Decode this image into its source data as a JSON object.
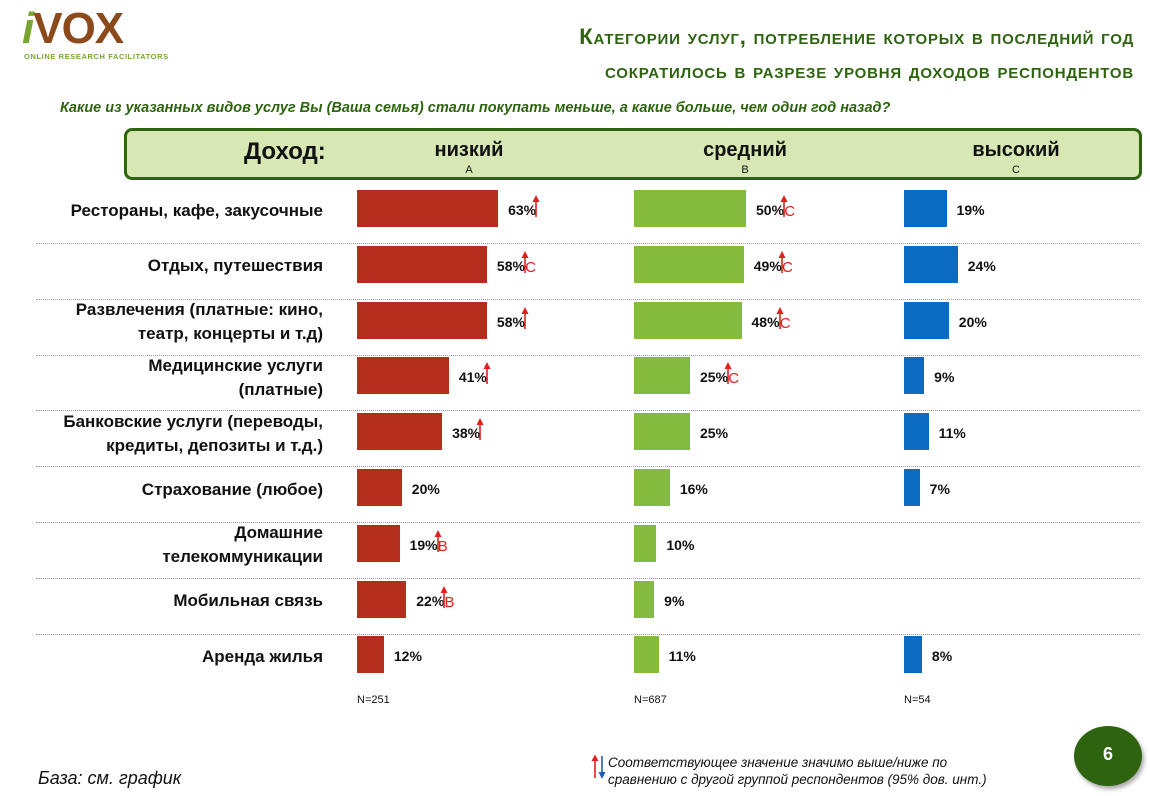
{
  "logo": {
    "main": "VOX",
    "i": "i",
    "tagline": "ONLINE RESEARCH FACILITATORS"
  },
  "title_line1": "Категории услуг, потребление которых в последний год",
  "title_line2": "сократилось в разрезе уровня доходов респондентов",
  "question": "Какие из указанных видов услуг Вы (Ваша семья) стали покупать меньше, а какие больше, чем один год назад?",
  "header": {
    "label": "Доход:"
  },
  "base_text": "База: см. график",
  "legend_line1": "Соответствующее значение значимо выше/ниже по",
  "legend_line2": "сравнению с другой группой респондентов (95% дов. инт.)",
  "page_number": "6",
  "colors": {
    "low": "#b52d1c",
    "mid": "#84ba3e",
    "high": "#0b6ac2",
    "accent": "#2e6410",
    "sig": "#e0201a"
  },
  "chart_data": {
    "type": "bar",
    "orientation": "horizontal",
    "categories": [
      [
        "Рестораны, кафе, закусочные"
      ],
      [
        "Отдых, путешествия"
      ],
      [
        "Развлечения (платные: кино,",
        "театр, концерты и т.д)"
      ],
      [
        "Медицинские услуги",
        "(платные)"
      ],
      [
        "Банковские услуги (переводы,",
        "кредиты, депозиты и т.д.)"
      ],
      [
        "Страхование (любое)"
      ],
      [
        "Домашние",
        "телекоммуникации"
      ],
      [
        "Мобильная связь"
      ],
      [
        "Аренда жилья"
      ]
    ],
    "series": [
      {
        "name": "низкий",
        "letter": "A",
        "n": "N=251",
        "values": [
          63,
          58,
          58,
          41,
          38,
          20,
          19,
          22,
          12
        ],
        "labels": [
          "63%",
          "58%",
          "58%",
          "41%",
          "38%",
          "20%",
          "19%",
          "22%",
          "12%"
        ],
        "sig": [
          {
            "arrow": "up",
            "letter": ""
          },
          {
            "arrow": "up",
            "letter": "C"
          },
          {
            "arrow": "up",
            "letter": ""
          },
          {
            "arrow": "up",
            "letter": ""
          },
          {
            "arrow": "up",
            "letter": ""
          },
          null,
          {
            "arrow": "up",
            "letter": "B"
          },
          {
            "arrow": "up",
            "letter": "B"
          },
          null
        ]
      },
      {
        "name": "средний",
        "letter": "B",
        "n": "N=687",
        "values": [
          50,
          49,
          48,
          25,
          25,
          16,
          10,
          9,
          11
        ],
        "labels": [
          "50%",
          "49%",
          "48%",
          "25%",
          "25%",
          "16%",
          "10%",
          "9%",
          "11%"
        ],
        "sig": [
          {
            "arrow": "up",
            "letter": "C"
          },
          {
            "arrow": "up",
            "letter": "C"
          },
          {
            "arrow": "up",
            "letter": "C"
          },
          {
            "arrow": "up",
            "letter": "C"
          },
          null,
          null,
          null,
          null,
          null
        ]
      },
      {
        "name": "высокий",
        "letter": "C",
        "n": "N=54",
        "values": [
          19,
          24,
          20,
          9,
          11,
          7,
          null,
          null,
          8
        ],
        "labels": [
          "19%",
          "24%",
          "20%",
          "9%",
          "11%",
          "7%",
          "",
          "",
          "8%"
        ],
        "sig": [
          null,
          null,
          null,
          null,
          null,
          null,
          null,
          null,
          null
        ]
      }
    ]
  }
}
